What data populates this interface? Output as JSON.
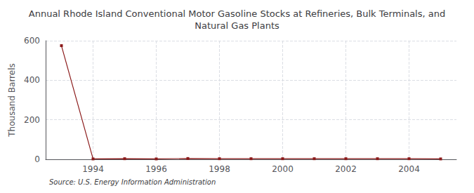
{
  "chart_data": {
    "type": "line",
    "title": "Annual Rhode Island Conventional Motor Gasoline Stocks at Refineries, Bulk Terminals, and\nNatural Gas Plants",
    "ylabel": "Thousand Barrels",
    "source": "Source: U.S. Energy Information Administration",
    "x": [
      1993,
      1994,
      1995,
      1996,
      1997,
      1998,
      1999,
      2000,
      2001,
      2002,
      2003,
      2004,
      2005
    ],
    "values": [
      575,
      2,
      3,
      2,
      4,
      3,
      3,
      3,
      3,
      3,
      3,
      3,
      2
    ],
    "color": "#8b1a1a",
    "marker": "square",
    "xlim": [
      1992.5,
      2005.5
    ],
    "xticks": [
      1994,
      1996,
      1998,
      2000,
      2002,
      2004
    ],
    "ylim": [
      0,
      600
    ],
    "yticks": [
      0,
      200,
      400,
      600
    ],
    "grid": true
  }
}
